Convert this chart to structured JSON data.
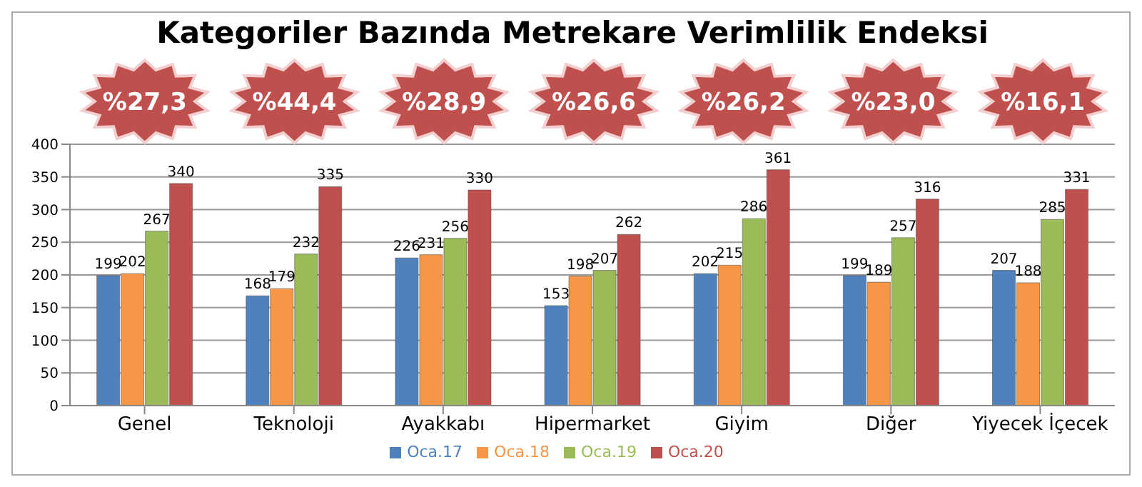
{
  "chart_data": {
    "type": "bar",
    "title": "Kategoriler Bazında Metrekare Verimlilik Endeksi",
    "categories": [
      "Genel",
      "Teknoloji",
      "Ayakkabı",
      "Hipermarket",
      "Giyim",
      "Diğer",
      "Yiyecek İçecek"
    ],
    "series": [
      {
        "name": "Oca.17",
        "color": "#4f81bd",
        "values": [
          199,
          168,
          226,
          153,
          202,
          199,
          207
        ]
      },
      {
        "name": "Oca.18",
        "color": "#f79646",
        "values": [
          202,
          179,
          231,
          198,
          215,
          189,
          188
        ]
      },
      {
        "name": "Oca.19",
        "color": "#9bbb59",
        "values": [
          267,
          232,
          256,
          207,
          286,
          257,
          285
        ]
      },
      {
        "name": "Oca.20",
        "color": "#c0504d",
        "values": [
          340,
          335,
          330,
          262,
          361,
          316,
          331
        ]
      }
    ],
    "annotations": [
      "%27,3",
      "%44,4",
      "%28,9",
      "%26,6",
      "%26,2",
      "%23,0",
      "%16,1"
    ],
    "ylim": [
      0,
      400
    ],
    "yticks": [
      0,
      50,
      100,
      150,
      200,
      250,
      300,
      350,
      400
    ],
    "grid": "y",
    "legend": "bottom",
    "data_labels": true
  }
}
